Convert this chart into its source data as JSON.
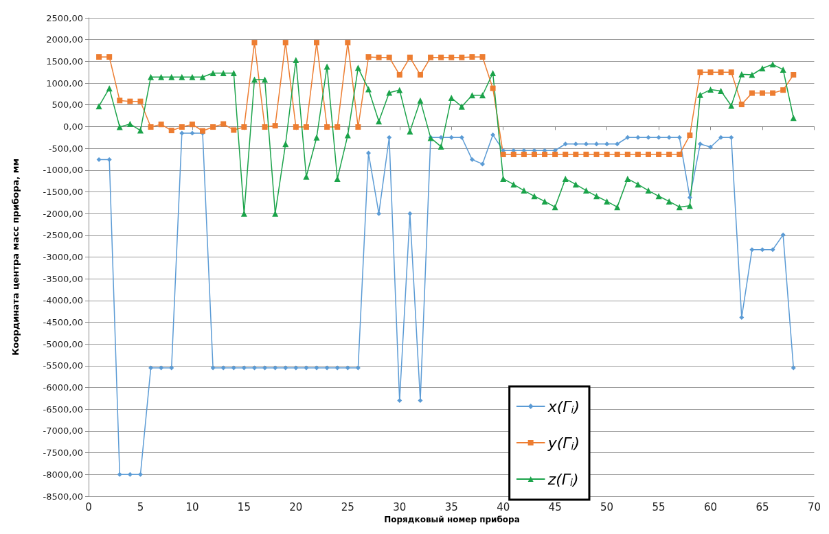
{
  "chart_data": {
    "type": "line",
    "xlabel": "Порядковый номер прибора",
    "ylabel": "Координата центра масс прибора, мм",
    "x": [
      1,
      2,
      3,
      4,
      5,
      6,
      7,
      8,
      9,
      10,
      11,
      12,
      13,
      14,
      15,
      16,
      17,
      18,
      19,
      20,
      21,
      22,
      23,
      24,
      25,
      26,
      27,
      28,
      29,
      30,
      31,
      32,
      33,
      34,
      35,
      36,
      37,
      38,
      39,
      40,
      41,
      42,
      43,
      44,
      45,
      46,
      47,
      48,
      49,
      50,
      51,
      52,
      53,
      54,
      55,
      56,
      57,
      58,
      59,
      60,
      61,
      62,
      63,
      64,
      65,
      66,
      67,
      68
    ],
    "series": [
      {
        "name": "x(Γ$_{i}$)",
        "color": "#5b9bd5",
        "marker": "diamond",
        "values": [
          -760,
          -760,
          -8000,
          -8000,
          -8000,
          -5550,
          -5550,
          -5550,
          -150,
          -150,
          -150,
          -5550,
          -5550,
          -5550,
          -5550,
          -5550,
          -5550,
          -5550,
          -5550,
          -5550,
          -5550,
          -5550,
          -5550,
          -5550,
          -5550,
          -5550,
          -610,
          -2000,
          -250,
          -6300,
          -2000,
          -6300,
          -250,
          -250,
          -250,
          -250,
          -760,
          -860,
          -190,
          -550,
          -550,
          -550,
          -550,
          -550,
          -550,
          -400,
          -400,
          -400,
          -400,
          -400,
          -400,
          -250,
          -250,
          -250,
          -250,
          -250,
          -250,
          -1630,
          -400,
          -470,
          -250,
          -250,
          -4390,
          -2830,
          -2830,
          -2830,
          -2490,
          -5550
        ]
      },
      {
        "name": "y(Γ$_{i}$)",
        "color": "#ed7d31",
        "marker": "square",
        "values": [
          1600,
          1600,
          600,
          580,
          580,
          -10,
          50,
          -90,
          -10,
          50,
          -100,
          -10,
          60,
          -80,
          -10,
          1930,
          -10,
          20,
          1930,
          -10,
          -10,
          1930,
          -10,
          -10,
          1930,
          -10,
          1600,
          1590,
          1590,
          1190,
          1590,
          1190,
          1590,
          1590,
          1590,
          1590,
          1600,
          1600,
          880,
          -640,
          -640,
          -640,
          -640,
          -640,
          -640,
          -640,
          -640,
          -640,
          -640,
          -640,
          -640,
          -640,
          -640,
          -640,
          -640,
          -640,
          -640,
          -200,
          1250,
          1250,
          1250,
          1250,
          510,
          770,
          770,
          770,
          840,
          1190
        ]
      },
      {
        "name": "z(Γ$_{i}$)",
        "color": "#1ba34a",
        "marker": "triangle",
        "values": [
          470,
          880,
          -10,
          60,
          -90,
          1140,
          1140,
          1140,
          1140,
          1140,
          1140,
          1230,
          1230,
          1230,
          -2000,
          1080,
          1080,
          -2000,
          -400,
          1530,
          -1150,
          -250,
          1380,
          -1200,
          -200,
          1350,
          860,
          120,
          780,
          840,
          -110,
          600,
          -260,
          -460,
          660,
          460,
          720,
          720,
          1230,
          -1200,
          -1330,
          -1470,
          -1600,
          -1720,
          -1850,
          -1200,
          -1330,
          -1470,
          -1600,
          -1720,
          -1850,
          -1200,
          -1330,
          -1470,
          -1600,
          -1720,
          -1850,
          -1820,
          730,
          850,
          820,
          480,
          1200,
          1190,
          1340,
          1430,
          1310,
          200
        ]
      }
    ],
    "xlim": [
      0,
      70
    ],
    "xticks": [
      0,
      5,
      10,
      15,
      20,
      25,
      30,
      35,
      40,
      45,
      50,
      55,
      60,
      65,
      70
    ],
    "ylim": [
      -8500,
      2500
    ],
    "yticks": [
      {
        "value": 2500,
        "label": "2500,00"
      },
      {
        "value": 2000,
        "label": "2000,00"
      },
      {
        "value": 1500,
        "label": "1500,00"
      },
      {
        "value": 1000,
        "label": "1000,00"
      },
      {
        "value": 500,
        "label": "500,00"
      },
      {
        "value": 0,
        "label": "0,00"
      },
      {
        "value": -500,
        "label": "-500,00"
      },
      {
        "value": -1000,
        "label": "-1000,00"
      },
      {
        "value": -1500,
        "label": "-1500,00"
      },
      {
        "value": -2000,
        "label": "-2000,00"
      },
      {
        "value": -2500,
        "label": "-2500,00"
      },
      {
        "value": -3000,
        "label": "-3000,00"
      },
      {
        "value": -3500,
        "label": "-3500,00"
      },
      {
        "value": -4000,
        "label": "-4000,00"
      },
      {
        "value": -4500,
        "label": "-4500,00"
      },
      {
        "value": -5000,
        "label": "-5000,00"
      },
      {
        "value": -5500,
        "label": "-5500,00"
      },
      {
        "value": -6000,
        "label": "-6000,00"
      },
      {
        "value": -6500,
        "label": "-6500,00"
      },
      {
        "value": -7000,
        "label": "-7000,00"
      },
      {
        "value": -7500,
        "label": "-7500,00"
      },
      {
        "value": -8000,
        "label": "-8000,00"
      },
      {
        "value": -8500,
        "label": "-8500,00"
      }
    ],
    "grid": "y",
    "legend": "bottom right",
    "line_style": "solid"
  }
}
